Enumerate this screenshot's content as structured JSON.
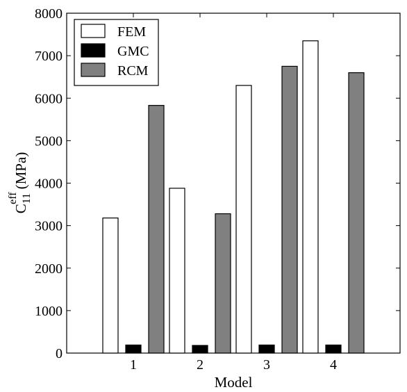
{
  "chart_data": {
    "type": "bar",
    "title": "",
    "xlabel": "Model",
    "ylabel": {
      "base": "C",
      "superscript": "eff",
      "subscript": "11",
      "unit": "(MPa)"
    },
    "categories": [
      "1",
      "2",
      "3",
      "4"
    ],
    "xlim": [
      0,
      5
    ],
    "ylim": [
      0,
      8000
    ],
    "yticks": [
      "0",
      "1000",
      "2000",
      "3000",
      "4000",
      "5000",
      "6000",
      "7000",
      "8000"
    ],
    "grid": false,
    "legend_position": "top-left",
    "series": [
      {
        "name": "FEM",
        "color": "#ffffff",
        "values": [
          3180,
          3880,
          6300,
          7350
        ]
      },
      {
        "name": "GMC",
        "color": "#000000",
        "values": [
          190,
          180,
          190,
          190
        ]
      },
      {
        "name": "RCM",
        "color": "#808080",
        "values": [
          5830,
          3280,
          6750,
          6600
        ]
      }
    ]
  }
}
